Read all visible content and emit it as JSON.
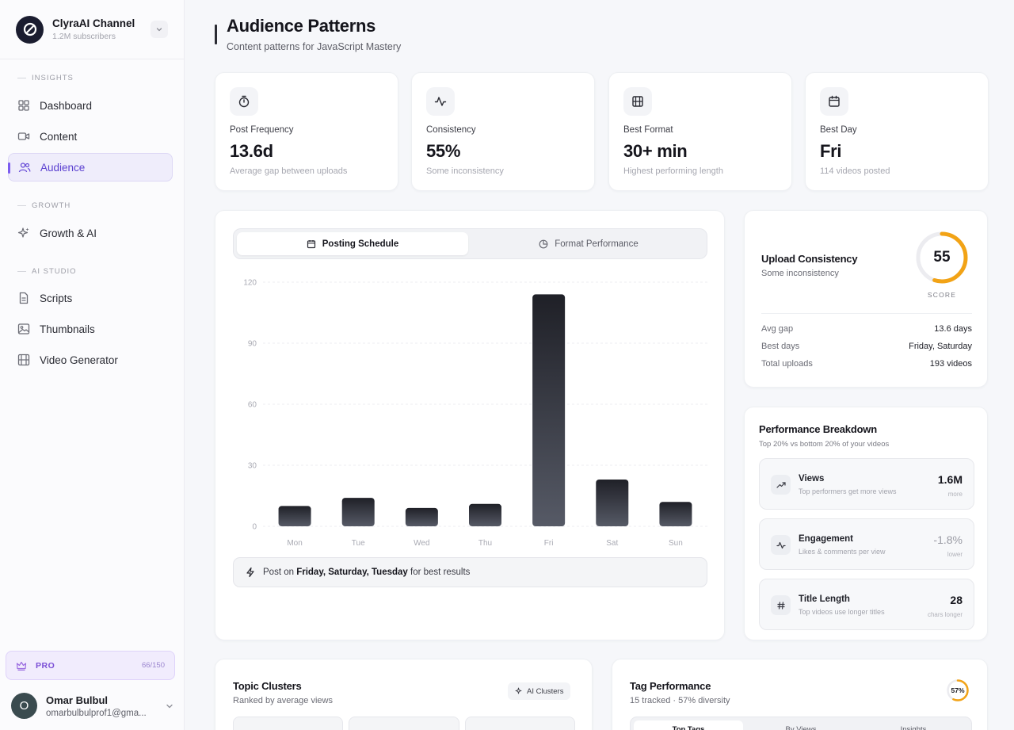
{
  "channel": {
    "name": "ClyraAI Channel",
    "subscribers": "1.2M subscribers"
  },
  "sidebar": {
    "sections": [
      {
        "label": "INSIGHTS",
        "items": [
          {
            "label": "Dashboard",
            "icon": "grid-icon"
          },
          {
            "label": "Content",
            "icon": "video-icon"
          },
          {
            "label": "Audience",
            "icon": "users-icon",
            "active": true
          }
        ]
      },
      {
        "label": "GROWTH",
        "items": [
          {
            "label": "Growth & AI",
            "icon": "sparkles-icon"
          }
        ]
      },
      {
        "label": "AI STUDIO",
        "items": [
          {
            "label": "Scripts",
            "icon": "document-icon"
          },
          {
            "label": "Thumbnails",
            "icon": "image-icon"
          },
          {
            "label": "Video Generator",
            "icon": "film-icon"
          }
        ]
      }
    ],
    "pro": {
      "label": "PRO",
      "usage": "66/150"
    },
    "user": {
      "initial": "O",
      "name": "Omar Bulbul",
      "email": "omarbulbulprof1@gma..."
    }
  },
  "header": {
    "title": "Audience Patterns",
    "subtitle": "Content patterns for JavaScript Mastery"
  },
  "stats": [
    {
      "label": "Post Frequency",
      "value": "13.6d",
      "desc": "Average gap between uploads",
      "icon": "stopwatch-icon"
    },
    {
      "label": "Consistency",
      "value": "55%",
      "desc": "Some inconsistency",
      "icon": "activity-icon"
    },
    {
      "label": "Best Format",
      "value": "30+ min",
      "desc": "Highest performing length",
      "icon": "film-icon"
    },
    {
      "label": "Best Day",
      "value": "Fri",
      "desc": "114 videos posted",
      "icon": "calendar-icon"
    }
  ],
  "schedule": {
    "tabs": {
      "active": "Posting Schedule",
      "inactive": "Format Performance"
    },
    "tip": {
      "prefix": "Post on",
      "days": "Friday, Saturday, Tuesday",
      "suffix": "for best results"
    }
  },
  "chart_data": {
    "type": "bar",
    "categories": [
      "Mon",
      "Tue",
      "Wed",
      "Thu",
      "Fri",
      "Sat",
      "Sun"
    ],
    "values": [
      10,
      14,
      9,
      11,
      114,
      23,
      12
    ],
    "ylim": [
      0,
      120
    ],
    "yticks": [
      0,
      30,
      60,
      90,
      120
    ],
    "grid": true,
    "bar_color": "#1f2027"
  },
  "upload_consistency": {
    "title": "Upload Consistency",
    "subtitle": "Some inconsistency",
    "score": 55,
    "score_display": "55",
    "score_label": "SCORE",
    "gauge_color": "#f2a316",
    "rows": [
      {
        "key": "Avg gap",
        "value": "13.6 days"
      },
      {
        "key": "Best days",
        "value": "Friday, Saturday"
      },
      {
        "key": "Total uploads",
        "value": "193 videos"
      }
    ]
  },
  "performance": {
    "title": "Performance Breakdown",
    "subtitle": "Top 20% vs bottom 20% of your videos",
    "metrics": [
      {
        "name": "Views",
        "desc": "Top performers get more views",
        "value": "1.6M",
        "note": "more",
        "icon": "trending-up-icon"
      },
      {
        "name": "Engagement",
        "desc": "Likes & comments per view",
        "value": "-1.8%",
        "note": "lower",
        "icon": "activity-icon"
      },
      {
        "name": "Title Length",
        "desc": "Top videos use longer titles",
        "value": "28",
        "note": "chars longer",
        "icon": "hash-icon"
      }
    ]
  },
  "topics": {
    "title": "Topic Clusters",
    "subtitle": "Ranked by average views",
    "chip": "AI Clusters"
  },
  "tags": {
    "title": "Tag Performance",
    "subtitle": "15 tracked · 57% diversity",
    "diversity": 57,
    "diversity_display": "57%",
    "gauge_color": "#f2a316",
    "tabs": [
      "Top Tags",
      "By Views",
      "Insights"
    ]
  }
}
